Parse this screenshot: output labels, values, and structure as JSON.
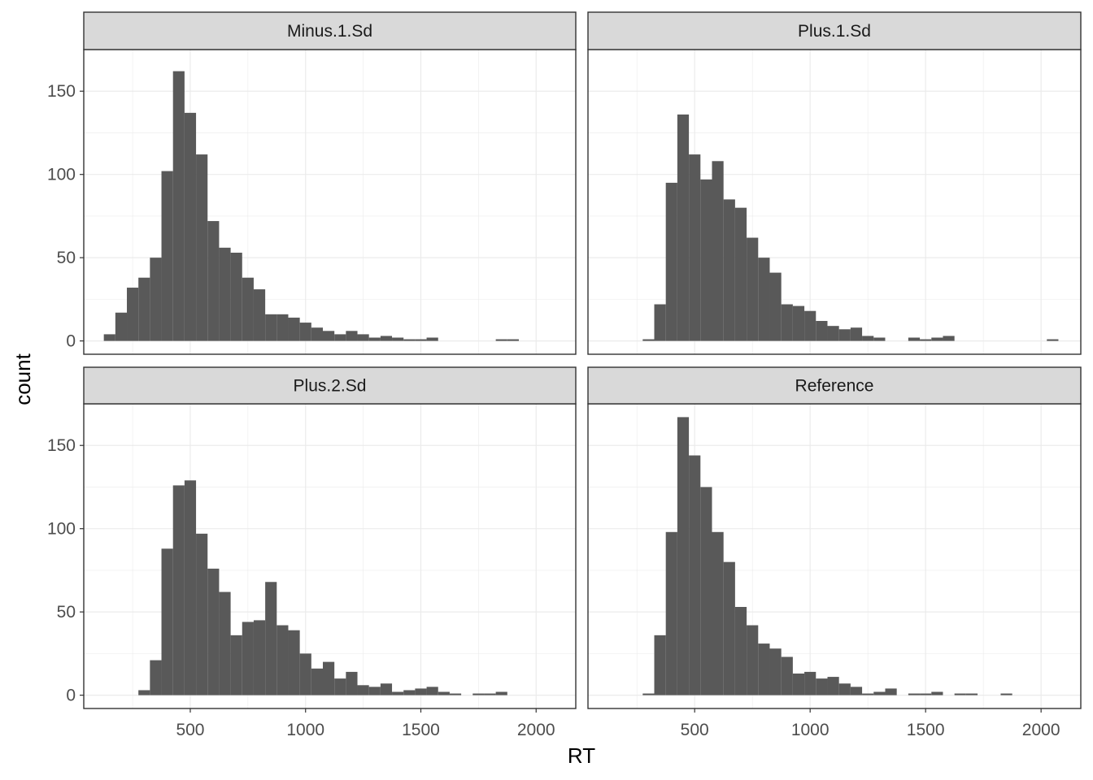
{
  "chart_data": {
    "type": "bar",
    "subtype": "faceted-histogram",
    "xlabel": "RT",
    "ylabel": "count",
    "bin_width": 50,
    "xlim": [
      38,
      2172
    ],
    "ylim": [
      -8,
      175
    ],
    "x_ticks": [
      500,
      1000,
      1500,
      2000
    ],
    "y_ticks": [
      0,
      50,
      100,
      150
    ],
    "grid": true,
    "bar_color": "#595959",
    "strip_color": "#d9d9d9",
    "panels": [
      {
        "name": "Minus.1.Sd",
        "bin_centers": [
          150,
          200,
          250,
          300,
          350,
          400,
          450,
          500,
          550,
          600,
          650,
          700,
          750,
          800,
          850,
          900,
          950,
          1000,
          1050,
          1100,
          1150,
          1200,
          1250,
          1300,
          1350,
          1400,
          1450,
          1500,
          1550,
          1600,
          1650,
          1700,
          1750,
          1800,
          1850,
          1900
        ],
        "counts": [
          4,
          17,
          32,
          38,
          50,
          102,
          162,
          137,
          112,
          72,
          56,
          53,
          38,
          31,
          16,
          16,
          14,
          11,
          8,
          6,
          4,
          6,
          4,
          2,
          3,
          2,
          1,
          1,
          2,
          0,
          0,
          0,
          0,
          0,
          1,
          1
        ]
      },
      {
        "name": "Plus.1.Sd",
        "bin_centers": [
          300,
          350,
          400,
          450,
          500,
          550,
          600,
          650,
          700,
          750,
          800,
          850,
          900,
          950,
          1000,
          1050,
          1100,
          1150,
          1200,
          1250,
          1300,
          1350,
          1400,
          1450,
          1500,
          1550,
          1600,
          1650,
          1700,
          1750,
          1800,
          1850,
          1900,
          1950,
          2000,
          2050
        ],
        "counts": [
          1,
          22,
          95,
          136,
          112,
          97,
          108,
          85,
          80,
          62,
          50,
          41,
          22,
          21,
          18,
          12,
          9,
          7,
          8,
          3,
          2,
          0,
          0,
          2,
          1,
          2,
          3,
          0,
          0,
          0,
          0,
          0,
          0,
          0,
          0,
          1
        ]
      },
      {
        "name": "Plus.2.Sd",
        "bin_centers": [
          300,
          350,
          400,
          450,
          500,
          550,
          600,
          650,
          700,
          750,
          800,
          850,
          900,
          950,
          1000,
          1050,
          1100,
          1150,
          1200,
          1250,
          1300,
          1350,
          1400,
          1450,
          1500,
          1550,
          1600,
          1650,
          1700,
          1750,
          1800,
          1850
        ],
        "counts": [
          3,
          21,
          88,
          126,
          129,
          97,
          76,
          62,
          36,
          44,
          45,
          68,
          42,
          39,
          25,
          16,
          20,
          10,
          14,
          6,
          5,
          7,
          2,
          3,
          4,
          5,
          2,
          1,
          0,
          1,
          1,
          2
        ]
      },
      {
        "name": "Reference",
        "bin_centers": [
          300,
          350,
          400,
          450,
          500,
          550,
          600,
          650,
          700,
          750,
          800,
          850,
          900,
          950,
          1000,
          1050,
          1100,
          1150,
          1200,
          1250,
          1300,
          1350,
          1400,
          1450,
          1500,
          1550,
          1600,
          1650,
          1700,
          1750,
          1800,
          1850
        ],
        "counts": [
          1,
          36,
          98,
          167,
          144,
          125,
          98,
          80,
          53,
          42,
          31,
          28,
          23,
          13,
          14,
          10,
          11,
          7,
          5,
          1,
          2,
          4,
          0,
          1,
          1,
          2,
          0,
          1,
          1,
          0,
          0,
          1
        ]
      }
    ]
  }
}
